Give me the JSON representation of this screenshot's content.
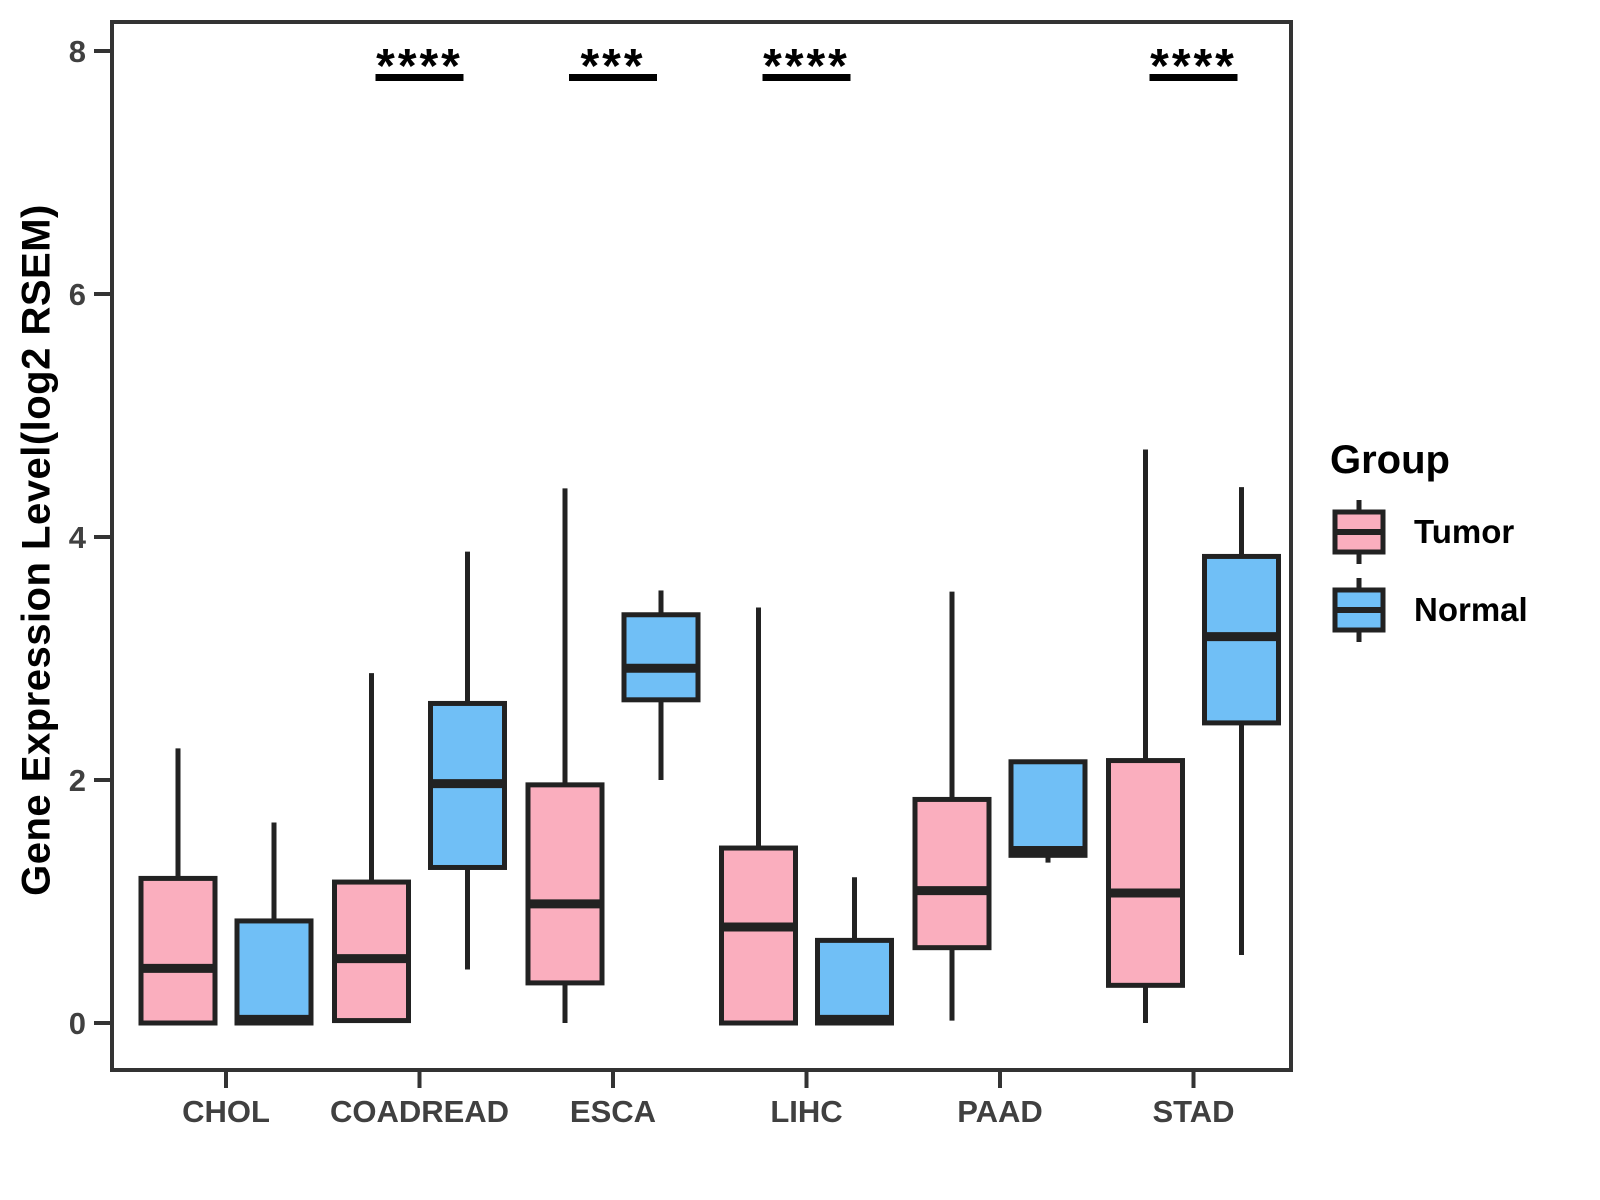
{
  "colors": {
    "tumor_fill": "#FAAEBE",
    "normal_fill": "#70BFF6",
    "box_stroke": "#222222",
    "axis_line": "#333333",
    "tick_label": "#404040",
    "annotation": "#000000"
  },
  "legend": {
    "title": "Group",
    "items": [
      {
        "label": "Tumor",
        "color_key": "tumor_fill"
      },
      {
        "label": "Normal",
        "color_key": "normal_fill"
      }
    ]
  },
  "chart_data": {
    "type": "boxplot",
    "title": "",
    "xlabel": "",
    "ylabel": "Gene Expression Level(log2 RSEM)",
    "ylim": [
      -0.39,
      8.24
    ],
    "yticks": [
      0,
      2,
      4,
      6,
      8
    ],
    "grid": false,
    "legend_position": "right",
    "categories": [
      "CHOL",
      "COADREAD",
      "ESCA",
      "LIHC",
      "PAAD",
      "STAD"
    ],
    "series": [
      {
        "name": "Tumor",
        "boxes": [
          {
            "category": "CHOL",
            "min": 0.0,
            "q1": 0.0,
            "median": 0.45,
            "q3": 1.19,
            "max": 2.26
          },
          {
            "category": "COADREAD",
            "min": 0.0,
            "q1": 0.02,
            "median": 0.53,
            "q3": 1.16,
            "max": 2.88
          },
          {
            "category": "ESCA",
            "min": 0.0,
            "q1": 0.33,
            "median": 0.98,
            "q3": 1.96,
            "max": 4.4
          },
          {
            "category": "LIHC",
            "min": 0.0,
            "q1": 0.0,
            "median": 0.79,
            "q3": 1.44,
            "max": 3.42
          },
          {
            "category": "PAAD",
            "min": 0.02,
            "q1": 0.62,
            "median": 1.09,
            "q3": 1.84,
            "max": 3.55
          },
          {
            "category": "STAD",
            "min": 0.0,
            "q1": 0.31,
            "median": 1.07,
            "q3": 2.16,
            "max": 4.72
          }
        ]
      },
      {
        "name": "Normal",
        "boxes": [
          {
            "category": "CHOL",
            "min": 0.0,
            "q1": 0.0,
            "median": 0.03,
            "q3": 0.84,
            "max": 1.65
          },
          {
            "category": "COADREAD",
            "min": 0.44,
            "q1": 1.28,
            "median": 1.97,
            "q3": 2.63,
            "max": 3.88
          },
          {
            "category": "ESCA",
            "min": 2.0,
            "q1": 2.66,
            "median": 2.92,
            "q3": 3.36,
            "max": 3.56
          },
          {
            "category": "LIHC",
            "min": 0.0,
            "q1": 0.0,
            "median": 0.03,
            "q3": 0.68,
            "max": 1.2
          },
          {
            "category": "PAAD",
            "min": 1.32,
            "q1": 1.38,
            "median": 1.42,
            "q3": 2.15,
            "max": 2.15
          },
          {
            "category": "STAD",
            "min": 0.56,
            "q1": 2.47,
            "median": 3.18,
            "q3": 3.84,
            "max": 4.41
          }
        ]
      }
    ],
    "significance": [
      {
        "category": "COADREAD",
        "label": "****"
      },
      {
        "category": "ESCA",
        "label": "***"
      },
      {
        "category": "LIHC",
        "label": "****"
      },
      {
        "category": "STAD",
        "label": "****"
      }
    ]
  }
}
